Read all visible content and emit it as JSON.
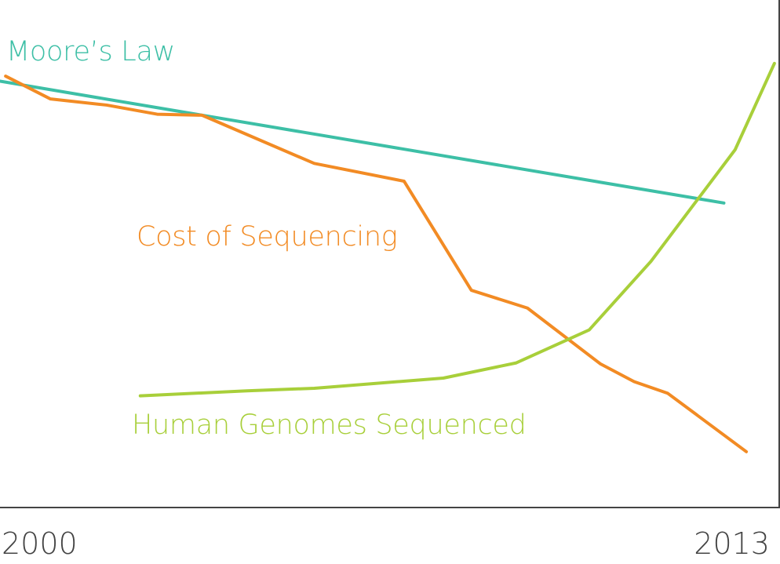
{
  "chart_data": {
    "type": "line",
    "xlim": [
      2000,
      2013.9
    ],
    "ylim": [
      0,
      100
    ],
    "x_ticks": [
      {
        "value": 2000,
        "label": "2000"
      },
      {
        "value": 2013,
        "label": "2013"
      }
    ],
    "y_axis_labels": "none",
    "grid": false,
    "legend": "inline labels",
    "series": [
      {
        "name": "Moore’s Law",
        "key": "moore",
        "color": "#3dbfa6",
        "x": [
          2000,
          2012.9
        ],
        "y": [
          84.0,
          60.0
        ]
      },
      {
        "name": "Cost of Sequencing",
        "key": "cost",
        "color": "#f28b24",
        "x": [
          2000.1,
          2000.9,
          2001.9,
          2002.8,
          2003.6,
          2005.6,
          2007.2,
          2008.4,
          2009.4,
          2010.7,
          2011.3,
          2011.9,
          2013.3
        ],
        "y": [
          85.0,
          80.5,
          79.3,
          77.5,
          77.3,
          67.8,
          64.3,
          42.8,
          39.3,
          28.3,
          24.8,
          22.5,
          11.0
        ]
      },
      {
        "name": "Human Genomes Sequenced",
        "key": "genomes",
        "color": "#a8cf3a",
        "x": [
          2002.5,
          2004.4,
          2005.6,
          2007.9,
          2009.2,
          2010.5,
          2011.6,
          2013.1,
          2013.8
        ],
        "y": [
          22.0,
          23.0,
          23.5,
          25.5,
          28.5,
          35.0,
          48.5,
          70.5,
          87.5
        ]
      }
    ]
  }
}
